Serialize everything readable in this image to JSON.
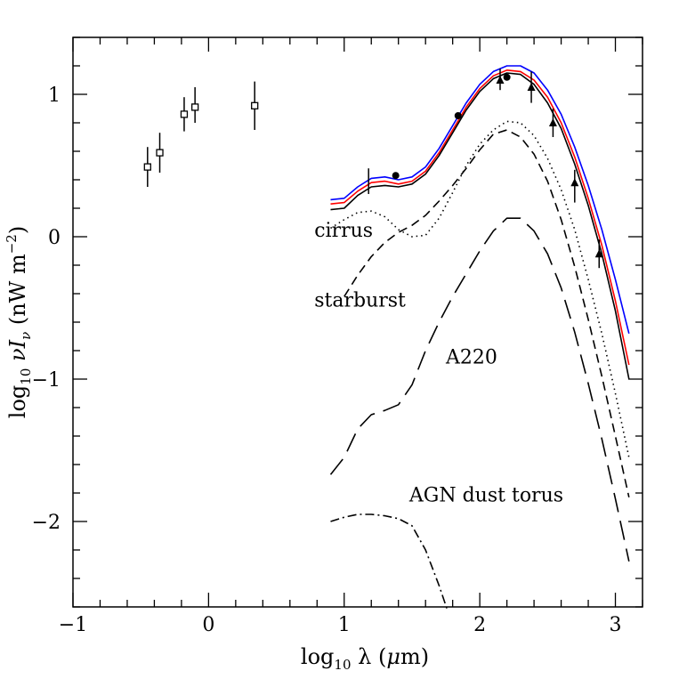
{
  "chart_data": {
    "type": "line",
    "title": "",
    "xlabel_parts": {
      "pre": "log",
      "sub": "10",
      "post": " λ (",
      "italic": "μ",
      "unit": "m)"
    },
    "ylabel_parts": {
      "pre": "log",
      "sub": "10",
      "mid": " ν",
      "var": "I",
      "vsub": "ν",
      "post": " (nW m",
      "sup": "−2",
      "end": ")"
    },
    "xlim": [
      -1.0,
      3.2
    ],
    "ylim": [
      -2.6,
      1.4
    ],
    "xticks": [
      {
        "v": -1,
        "label": "−1"
      },
      {
        "v": 0,
        "label": "0"
      },
      {
        "v": 1,
        "label": "1"
      },
      {
        "v": 2,
        "label": "2"
      },
      {
        "v": 3,
        "label": "3"
      }
    ],
    "yticks": [
      {
        "v": 1,
        "label": "1"
      },
      {
        "v": 0,
        "label": "0"
      },
      {
        "v": -1,
        "label": "−1"
      },
      {
        "v": -2,
        "label": "−2"
      }
    ],
    "series": [
      {
        "key": "blue",
        "color": "#0000ff",
        "dash": "",
        "points": [
          [
            0.9,
            0.26
          ],
          [
            1.0,
            0.27
          ],
          [
            1.1,
            0.35
          ],
          [
            1.2,
            0.41
          ],
          [
            1.3,
            0.42
          ],
          [
            1.4,
            0.4
          ],
          [
            1.5,
            0.42
          ],
          [
            1.6,
            0.49
          ],
          [
            1.7,
            0.62
          ],
          [
            1.8,
            0.78
          ],
          [
            1.9,
            0.94
          ],
          [
            2.0,
            1.07
          ],
          [
            2.1,
            1.16
          ],
          [
            2.2,
            1.2
          ],
          [
            2.3,
            1.2
          ],
          [
            2.4,
            1.15
          ],
          [
            2.5,
            1.03
          ],
          [
            2.6,
            0.86
          ],
          [
            2.7,
            0.63
          ],
          [
            2.8,
            0.36
          ],
          [
            2.9,
            0.05
          ],
          [
            3.0,
            -0.3
          ],
          [
            3.1,
            -0.68
          ]
        ]
      },
      {
        "key": "red",
        "color": "#ff0000",
        "dash": "",
        "points": [
          [
            0.9,
            0.23
          ],
          [
            1.0,
            0.24
          ],
          [
            1.1,
            0.32
          ],
          [
            1.2,
            0.38
          ],
          [
            1.3,
            0.39
          ],
          [
            1.4,
            0.37
          ],
          [
            1.5,
            0.39
          ],
          [
            1.6,
            0.46
          ],
          [
            1.7,
            0.59
          ],
          [
            1.8,
            0.75
          ],
          [
            1.9,
            0.91
          ],
          [
            2.0,
            1.04
          ],
          [
            2.1,
            1.13
          ],
          [
            2.2,
            1.17
          ],
          [
            2.3,
            1.16
          ],
          [
            2.4,
            1.1
          ],
          [
            2.5,
            0.98
          ],
          [
            2.6,
            0.8
          ],
          [
            2.7,
            0.56
          ],
          [
            2.8,
            0.27
          ],
          [
            2.9,
            -0.06
          ],
          [
            3.0,
            -0.45
          ],
          [
            3.1,
            -0.9
          ]
        ]
      },
      {
        "key": "total",
        "color": "#000000",
        "dash": "",
        "points": [
          [
            0.9,
            0.19
          ],
          [
            1.0,
            0.2
          ],
          [
            1.1,
            0.29
          ],
          [
            1.2,
            0.35
          ],
          [
            1.3,
            0.36
          ],
          [
            1.4,
            0.35
          ],
          [
            1.5,
            0.37
          ],
          [
            1.6,
            0.44
          ],
          [
            1.7,
            0.57
          ],
          [
            1.8,
            0.73
          ],
          [
            1.9,
            0.89
          ],
          [
            2.0,
            1.02
          ],
          [
            2.1,
            1.11
          ],
          [
            2.2,
            1.15
          ],
          [
            2.3,
            1.14
          ],
          [
            2.4,
            1.07
          ],
          [
            2.5,
            0.94
          ],
          [
            2.6,
            0.76
          ],
          [
            2.7,
            0.51
          ],
          [
            2.8,
            0.22
          ],
          [
            2.9,
            -0.12
          ],
          [
            3.0,
            -0.52
          ],
          [
            3.1,
            -1.0
          ]
        ]
      },
      {
        "key": "cirrus",
        "color": "#000000",
        "dash": "1.5 4",
        "points": [
          [
            0.9,
            0.06
          ],
          [
            1.0,
            0.12
          ],
          [
            1.1,
            0.17
          ],
          [
            1.2,
            0.18
          ],
          [
            1.3,
            0.14
          ],
          [
            1.4,
            0.05
          ],
          [
            1.5,
            0.0
          ],
          [
            1.6,
            0.01
          ],
          [
            1.7,
            0.13
          ],
          [
            1.8,
            0.31
          ],
          [
            1.9,
            0.5
          ],
          [
            2.0,
            0.65
          ],
          [
            2.1,
            0.75
          ],
          [
            2.2,
            0.81
          ],
          [
            2.3,
            0.8
          ],
          [
            2.4,
            0.71
          ],
          [
            2.5,
            0.55
          ],
          [
            2.6,
            0.33
          ],
          [
            2.7,
            0.05
          ],
          [
            2.8,
            -0.3
          ],
          [
            2.9,
            -0.68
          ],
          [
            3.0,
            -1.1
          ],
          [
            3.1,
            -1.55
          ]
        ]
      },
      {
        "key": "starburst",
        "color": "#000000",
        "dash": "10 6",
        "points": [
          [
            1.0,
            -0.42
          ],
          [
            1.1,
            -0.27
          ],
          [
            1.2,
            -0.14
          ],
          [
            1.3,
            -0.04
          ],
          [
            1.4,
            0.03
          ],
          [
            1.5,
            0.08
          ],
          [
            1.6,
            0.15
          ],
          [
            1.7,
            0.25
          ],
          [
            1.8,
            0.36
          ],
          [
            1.9,
            0.48
          ],
          [
            2.0,
            0.61
          ],
          [
            2.1,
            0.72
          ],
          [
            2.2,
            0.75
          ],
          [
            2.3,
            0.7
          ],
          [
            2.4,
            0.58
          ],
          [
            2.5,
            0.39
          ],
          [
            2.6,
            0.12
          ],
          [
            2.7,
            -0.21
          ],
          [
            2.8,
            -0.58
          ],
          [
            2.9,
            -0.98
          ],
          [
            3.0,
            -1.4
          ],
          [
            3.1,
            -1.83
          ]
        ]
      },
      {
        "key": "a220",
        "color": "#000000",
        "dash": "22 10",
        "points": [
          [
            0.9,
            -1.67
          ],
          [
            1.0,
            -1.55
          ],
          [
            1.1,
            -1.35
          ],
          [
            1.2,
            -1.25
          ],
          [
            1.3,
            -1.22
          ],
          [
            1.4,
            -1.18
          ],
          [
            1.5,
            -1.04
          ],
          [
            1.6,
            -0.8
          ],
          [
            1.7,
            -0.6
          ],
          [
            1.8,
            -0.42
          ],
          [
            1.9,
            -0.26
          ],
          [
            2.0,
            -0.1
          ],
          [
            2.1,
            0.04
          ],
          [
            2.2,
            0.13
          ],
          [
            2.3,
            0.13
          ],
          [
            2.4,
            0.04
          ],
          [
            2.5,
            -0.12
          ],
          [
            2.6,
            -0.36
          ],
          [
            2.7,
            -0.67
          ],
          [
            2.8,
            -1.03
          ],
          [
            2.9,
            -1.42
          ],
          [
            3.0,
            -1.84
          ],
          [
            3.1,
            -2.28
          ]
        ]
      },
      {
        "key": "agn",
        "color": "#000000",
        "dash": "10 4 2 4",
        "points": [
          [
            0.9,
            -2.0
          ],
          [
            1.0,
            -1.97
          ],
          [
            1.1,
            -1.95
          ],
          [
            1.2,
            -1.95
          ],
          [
            1.3,
            -1.96
          ],
          [
            1.4,
            -1.98
          ],
          [
            1.5,
            -2.03
          ],
          [
            1.6,
            -2.2
          ],
          [
            1.7,
            -2.45
          ],
          [
            1.76,
            -2.62
          ]
        ]
      }
    ],
    "data_squares": [
      {
        "x": -0.45,
        "y": 0.49,
        "lo": 0.35,
        "hi": 0.63
      },
      {
        "x": -0.36,
        "y": 0.59,
        "lo": 0.45,
        "hi": 0.73
      },
      {
        "x": -0.18,
        "y": 0.86,
        "lo": 0.74,
        "hi": 0.98
      },
      {
        "x": -0.1,
        "y": 0.91,
        "lo": 0.8,
        "hi": 1.05
      },
      {
        "x": 0.34,
        "y": 0.92,
        "lo": 0.75,
        "hi": 1.09
      }
    ],
    "data_circles": [
      {
        "x": 1.38,
        "y": 0.43
      },
      {
        "x": 1.84,
        "y": 0.85
      },
      {
        "x": 2.2,
        "y": 1.12
      }
    ],
    "data_triangles": [
      {
        "x": 2.15,
        "y": 1.1,
        "lo": 1.03,
        "hi": 1.18
      },
      {
        "x": 2.38,
        "y": 1.05,
        "lo": 0.94,
        "hi": 1.16
      },
      {
        "x": 2.54,
        "y": 0.8,
        "lo": 0.7,
        "hi": 0.9
      },
      {
        "x": 2.7,
        "y": 0.38,
        "lo": 0.24,
        "hi": 0.47
      },
      {
        "x": 2.88,
        "y": -0.12,
        "lo": -0.22,
        "hi": -0.02
      }
    ],
    "errorbar_only": [
      {
        "x": 1.18,
        "lo": 0.3,
        "hi": 0.48
      }
    ],
    "annotations": [
      {
        "key": "cirrus",
        "text": "cirrus",
        "x": 0.78,
        "y": 0.0
      },
      {
        "key": "starburst",
        "text": "starburst",
        "x": 0.78,
        "y": -0.49
      },
      {
        "key": "a220",
        "text": "A220",
        "x": 1.75,
        "y": -0.89
      },
      {
        "key": "agn",
        "text": "AGN dust torus",
        "x": 1.48,
        "y": -1.86
      }
    ],
    "grid": false,
    "legend": "none"
  }
}
